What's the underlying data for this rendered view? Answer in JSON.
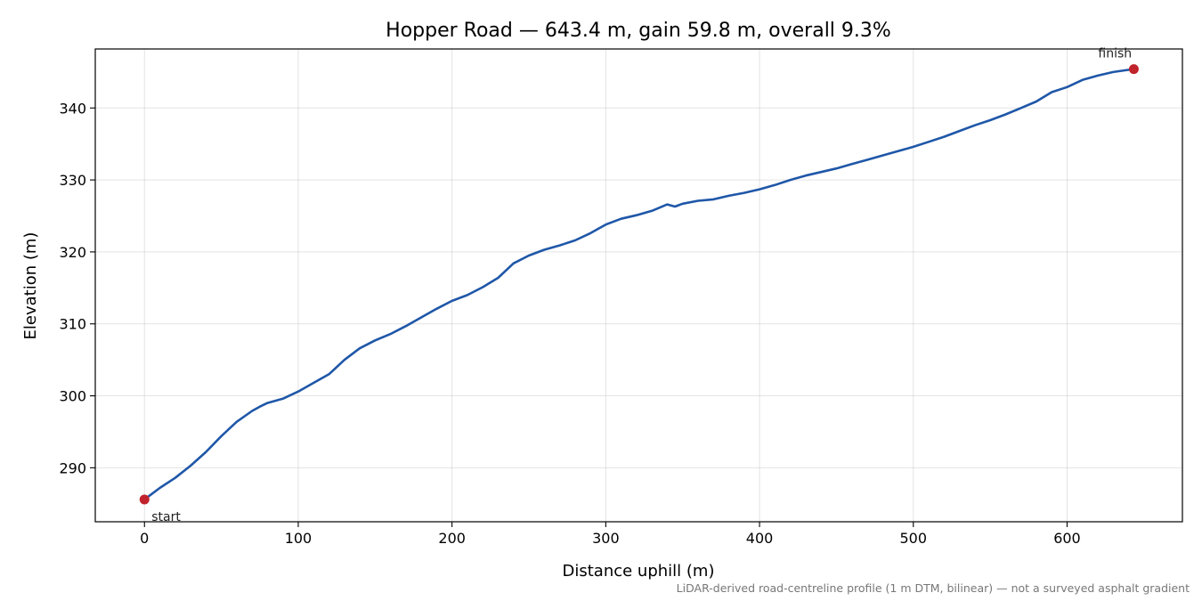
{
  "chart_data": {
    "type": "line",
    "title": "Hopper Road — 643.4 m, gain 59.8 m, overall 9.3%",
    "xlabel": "Distance uphill (m)",
    "ylabel": "Elevation (m)",
    "xlim": [
      -32,
      675
    ],
    "ylim": [
      282.5,
      348.2
    ],
    "xticks": [
      0,
      100,
      200,
      300,
      400,
      500,
      600
    ],
    "yticks": [
      290,
      300,
      310,
      320,
      330,
      340
    ],
    "grid": true,
    "line_color": "#1f57a8",
    "marker_color": "#c0232c",
    "series": [
      {
        "x": [
          0,
          10,
          20,
          30,
          40,
          50,
          60,
          70,
          75,
          80,
          90,
          100,
          110,
          120,
          130,
          140,
          150,
          160,
          170,
          180,
          190,
          200,
          210,
          220,
          230,
          240,
          250,
          260,
          270,
          280,
          290,
          300,
          310,
          320,
          330,
          340,
          345,
          350,
          360,
          370,
          380,
          390,
          400,
          410,
          420,
          430,
          440,
          450,
          460,
          470,
          480,
          490,
          500,
          510,
          520,
          530,
          540,
          550,
          560,
          570,
          580,
          590,
          600,
          610,
          620,
          630,
          640,
          643.4
        ],
        "y": [
          285.6,
          287.2,
          288.6,
          290.3,
          292.2,
          294.4,
          296.4,
          297.9,
          298.5,
          299.0,
          299.6,
          300.6,
          301.8,
          303.0,
          305.0,
          306.6,
          307.7,
          308.6,
          309.7,
          310.9,
          312.1,
          313.2,
          314.0,
          315.1,
          316.4,
          318.4,
          319.5,
          320.3,
          320.9,
          321.6,
          322.6,
          323.8,
          324.6,
          325.1,
          325.7,
          326.6,
          326.3,
          326.7,
          327.1,
          327.3,
          327.8,
          328.2,
          328.7,
          329.3,
          330.0,
          330.6,
          331.1,
          331.6,
          332.2,
          332.8,
          333.4,
          334.0,
          334.6,
          335.3,
          336.0,
          336.8,
          337.6,
          338.3,
          339.1,
          340.0,
          340.9,
          342.2,
          342.9,
          343.9,
          344.5,
          345.0,
          345.3,
          345.4
        ]
      }
    ],
    "annotations": [
      {
        "text": "start",
        "x": 0,
        "y": 285.6
      },
      {
        "text": "finish",
        "x": 643.4,
        "y": 345.4
      }
    ]
  },
  "footnote": "LiDAR-derived road-centreline profile (1 m DTM, bilinear) — not a surveyed asphalt gradient"
}
